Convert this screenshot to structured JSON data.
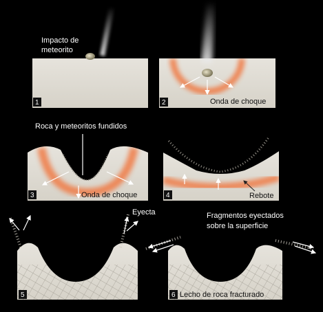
{
  "panels": [
    {
      "number": "1",
      "label": "Impacto de meteorito",
      "label_lines": [
        "Impacto de",
        "meteorito"
      ]
    },
    {
      "number": "2",
      "label": "Onda de choque"
    },
    {
      "number": "3",
      "label_top": "Roca y meteoritos fundidos",
      "label": "Onda de choque"
    },
    {
      "number": "4",
      "label": "Rebote"
    },
    {
      "number": "5",
      "label": "Eyecta"
    },
    {
      "number": "6",
      "label_top_lines": [
        "Fragmentos eyectados",
        "sobre la superficie"
      ],
      "label": "Lecho de roca fracturado"
    }
  ],
  "colors": {
    "background": "#000000",
    "ground": "#e2ded6",
    "shockwave": "#f07a45",
    "text": "#ffffff"
  }
}
